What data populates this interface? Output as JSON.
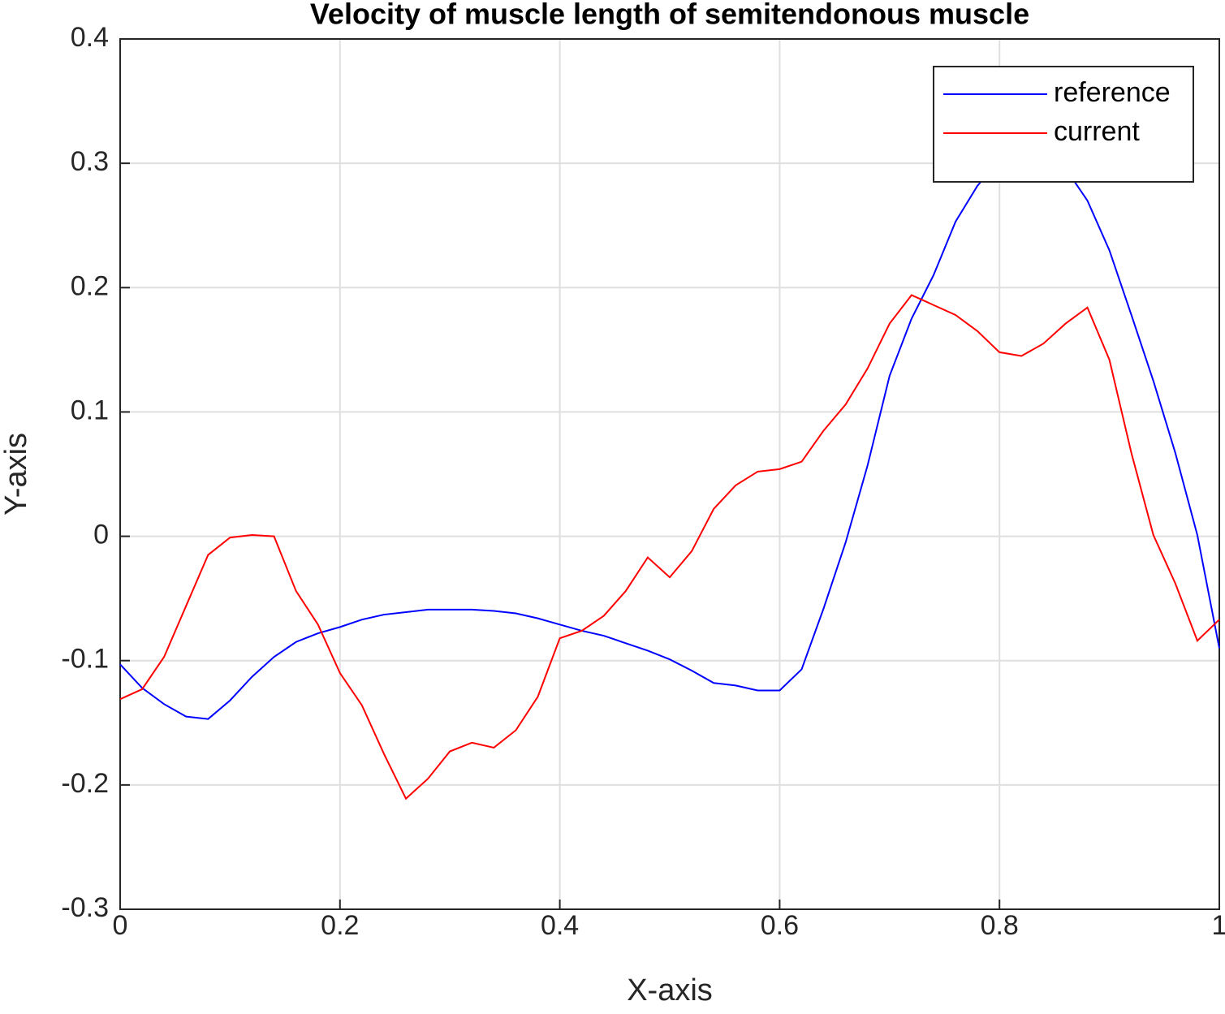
{
  "chart_data": {
    "type": "line",
    "title": "Velocity of muscle length of semitendonous muscle",
    "xlabel": "X-axis",
    "ylabel": "Y-axis",
    "x": [
      0,
      0.02,
      0.04,
      0.06,
      0.08,
      0.1,
      0.12,
      0.14,
      0.16,
      0.18,
      0.2,
      0.22,
      0.24,
      0.26,
      0.28,
      0.3,
      0.32,
      0.34,
      0.36,
      0.38,
      0.4,
      0.42,
      0.44,
      0.46,
      0.48,
      0.5,
      0.52,
      0.54,
      0.56,
      0.58,
      0.6,
      0.62,
      0.64,
      0.66,
      0.68,
      0.7,
      0.72,
      0.74,
      0.76,
      0.78,
      0.8,
      0.82,
      0.84,
      0.86,
      0.88,
      0.9,
      0.92,
      0.94,
      0.96,
      0.98,
      1
    ],
    "series": [
      {
        "name": "reference",
        "color": "#0000ff",
        "values": [
          -0.103,
          -0.122,
          -0.135,
          -0.145,
          -0.147,
          -0.132,
          -0.113,
          -0.097,
          -0.085,
          -0.078,
          -0.073,
          -0.067,
          -0.063,
          -0.061,
          -0.059,
          -0.059,
          -0.059,
          -0.06,
          -0.062,
          -0.066,
          -0.071,
          -0.076,
          -0.08,
          -0.086,
          -0.092,
          -0.099,
          -0.108,
          -0.118,
          -0.12,
          -0.124,
          -0.124,
          -0.107,
          -0.058,
          -0.005,
          0.057,
          0.129,
          0.175,
          0.21,
          0.253,
          0.282,
          0.302,
          0.312,
          0.311,
          0.296,
          0.27,
          0.23,
          0.178,
          0.125,
          0.067,
          0.001,
          -0.09
        ]
      },
      {
        "name": "current",
        "color": "#ff0000",
        "values": [
          -0.131,
          -0.123,
          -0.097,
          -0.056,
          -0.015,
          -0.001,
          0.001,
          0,
          -0.044,
          -0.071,
          -0.11,
          -0.136,
          -0.175,
          -0.211,
          -0.195,
          -0.173,
          -0.166,
          -0.17,
          -0.156,
          -0.129,
          -0.082,
          -0.076,
          -0.064,
          -0.044,
          -0.017,
          -0.033,
          -0.012,
          0.022,
          0.041,
          0.052,
          0.054,
          0.06,
          0.085,
          0.106,
          0.135,
          0.171,
          0.194,
          0.186,
          0.178,
          0.165,
          0.148,
          0.145,
          0.155,
          0.171,
          0.184,
          0.142,
          0.067,
          0.001,
          -0.038,
          -0.084,
          -0.067
        ]
      }
    ],
    "xlim": [
      0,
      1
    ],
    "xticks": [
      0,
      0.2,
      0.4,
      0.6,
      0.8,
      1
    ],
    "ylim": [
      -0.3,
      0.4
    ],
    "yticks": [
      -0.3,
      -0.2,
      -0.1,
      0,
      0.1,
      0.2,
      0.3,
      0.4
    ],
    "grid": true,
    "legend": "upper right"
  }
}
